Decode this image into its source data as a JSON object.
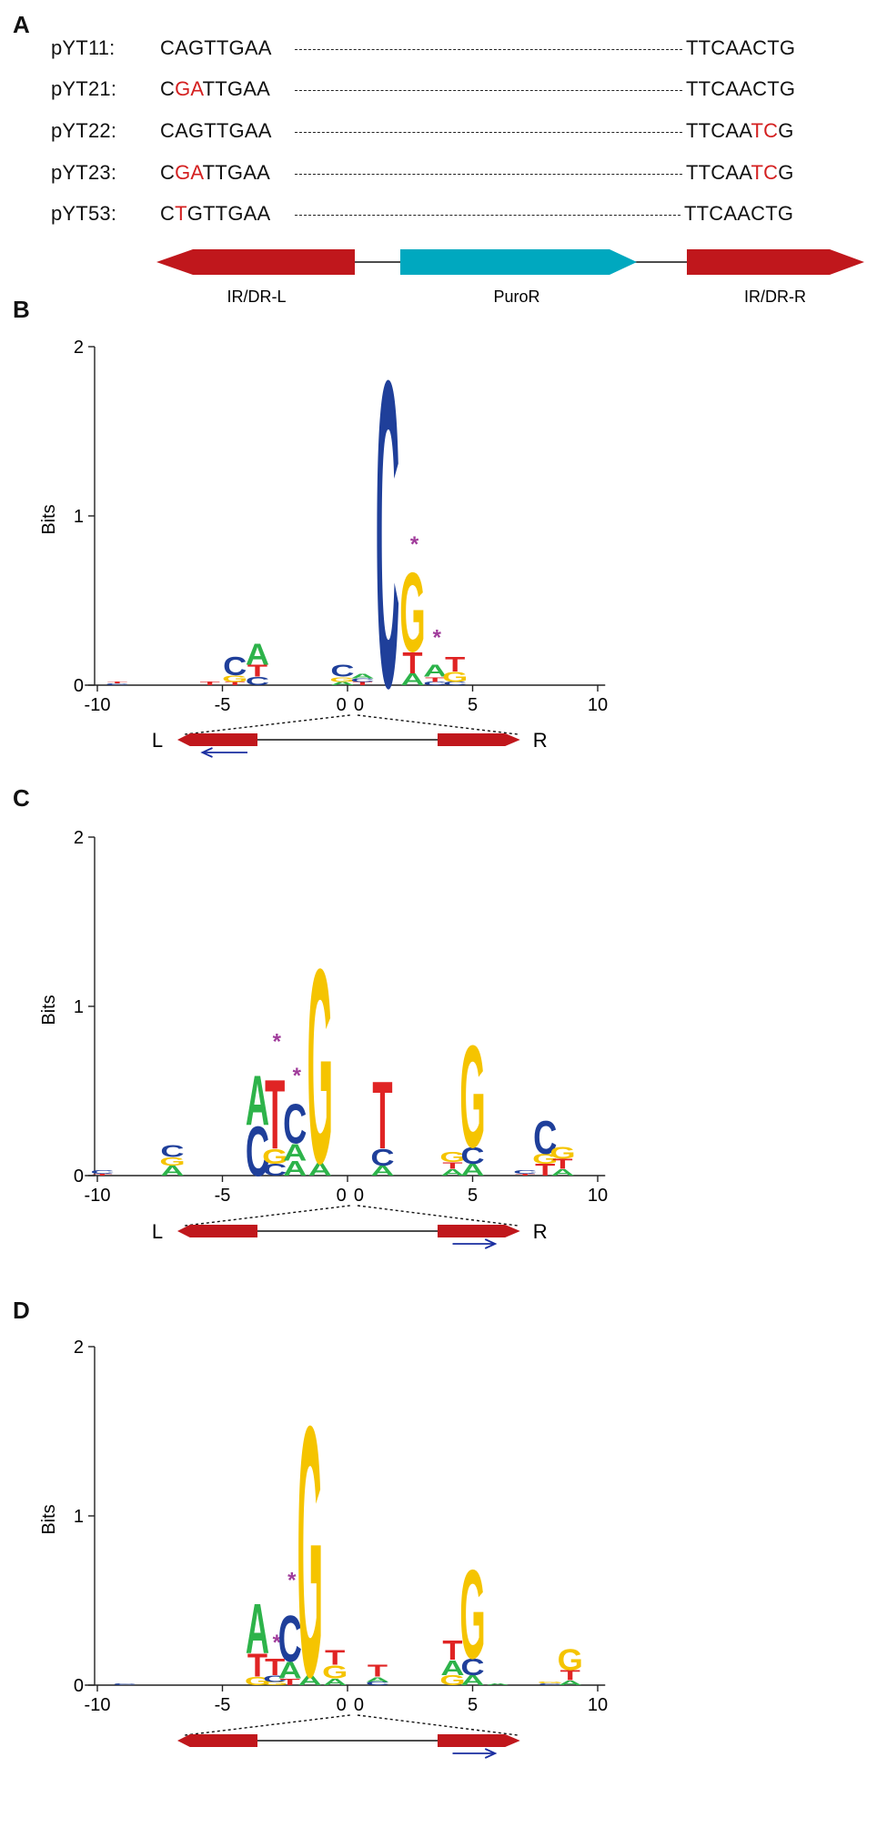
{
  "panels": {
    "A": "A",
    "B": "B",
    "C": "C",
    "D": "D"
  },
  "sequences": [
    {
      "name": "pYT11:",
      "left": [
        [
          "CAGTTGAA",
          false
        ]
      ],
      "right": [
        [
          "TTCAACTG",
          false
        ]
      ]
    },
    {
      "name": "pYT21:",
      "left": [
        [
          "C",
          false
        ],
        [
          "GA",
          true
        ],
        [
          "TTGAA",
          false
        ]
      ],
      "right": [
        [
          "TTCAACTG",
          false
        ]
      ]
    },
    {
      "name": "pYT22:",
      "left": [
        [
          "CAGTTGAA",
          false
        ]
      ],
      "right": [
        [
          "TTCAA",
          false
        ],
        [
          "TC",
          true
        ],
        [
          "G",
          false
        ]
      ]
    },
    {
      "name": "pYT23:",
      "left": [
        [
          "C",
          false
        ],
        [
          "GA",
          true
        ],
        [
          "TTGAA",
          false
        ]
      ],
      "right": [
        [
          "TTCAA",
          false
        ],
        [
          "TC",
          true
        ],
        [
          "G",
          false
        ]
      ]
    },
    {
      "name": "pYT53:",
      "left": [
        [
          "C",
          false
        ],
        [
          "T",
          true
        ],
        [
          "GTTGAA",
          false
        ]
      ],
      "right": [
        [
          "TTCAACTG",
          false
        ]
      ]
    }
  ],
  "construct": {
    "left_label": "IR/DR-L",
    "middle_label": "PuroR",
    "right_label": "IR/DR-R"
  },
  "colors": {
    "A": "#2db34a",
    "C": "#1f3f9a",
    "G": "#f5c400",
    "T": "#e02424",
    "arrow_red": "#c0171c",
    "puro": "#00a8bf",
    "star": "#a03c9b",
    "blue_arrow": "#1a2ea0"
  },
  "logo_axes": {
    "ylabel": "Bits",
    "yticks": [
      "0",
      "1",
      "2"
    ],
    "xticks": [
      "-10",
      "-5",
      "0",
      "0",
      "5",
      "10"
    ]
  },
  "chart_data": [
    {
      "type": "sequence-logo",
      "panel": "B",
      "ylabel": "Bits",
      "ylim": [
        0,
        2
      ],
      "xlim": [
        -10,
        10
      ],
      "positions": [
        {
          "x": -9.2,
          "stack": [
            [
              "C",
              0.01
            ],
            [
              "T",
              0.01
            ]
          ]
        },
        {
          "x": -5.5,
          "stack": [
            [
              "T",
              0.02
            ]
          ]
        },
        {
          "x": -4.5,
          "stack": [
            [
              "T",
              0.02
            ],
            [
              "G",
              0.04
            ],
            [
              "C",
              0.11
            ]
          ]
        },
        {
          "x": -3.6,
          "stack": [
            [
              "C",
              0.05
            ],
            [
              "T",
              0.07
            ],
            [
              "A",
              0.13
            ]
          ]
        },
        {
          "x": -0.2,
          "stack": [
            [
              "A",
              0.02
            ],
            [
              "G",
              0.03
            ],
            [
              "C",
              0.07
            ]
          ]
        },
        {
          "x": 0.6,
          "stack": [
            [
              "T",
              0.02
            ],
            [
              "C",
              0.02
            ],
            [
              "A",
              0.03
            ]
          ]
        },
        {
          "x": 1.6,
          "stack": [
            [
              "C",
              1.86
            ]
          ]
        },
        {
          "x": 2.6,
          "stack": [
            [
              "A",
              0.07
            ],
            [
              "T",
              0.13
            ],
            [
              "G",
              0.48
            ]
          ],
          "star": 0.8
        },
        {
          "x": 3.5,
          "stack": [
            [
              "C",
              0.02
            ],
            [
              "T",
              0.03
            ],
            [
              "A",
              0.07
            ]
          ],
          "star": 0.25
        },
        {
          "x": 4.3,
          "stack": [
            [
              "C",
              0.02
            ],
            [
              "G",
              0.06
            ],
            [
              "T",
              0.09
            ]
          ]
        }
      ],
      "diagram": {
        "left_label": "L",
        "right_label": "R",
        "arrow": "left-under-left"
      }
    },
    {
      "type": "sequence-logo",
      "panel": "C",
      "ylabel": "Bits",
      "ylim": [
        0,
        2
      ],
      "xlim": [
        -10,
        10
      ],
      "positions": [
        {
          "x": -9.8,
          "stack": [
            [
              "T",
              0.01
            ],
            [
              "C",
              0.02
            ]
          ]
        },
        {
          "x": -7.0,
          "stack": [
            [
              "A",
              0.06
            ],
            [
              "G",
              0.05
            ],
            [
              "C",
              0.07
            ]
          ]
        },
        {
          "x": -3.6,
          "stack": [
            [
              "C",
              0.3
            ],
            [
              "A",
              0.3
            ]
          ]
        },
        {
          "x": -2.9,
          "stack": [
            [
              "C",
              0.07
            ],
            [
              "G",
              0.09
            ],
            [
              "T",
              0.42
            ]
          ],
          "star": 0.76
        },
        {
          "x": -2.1,
          "stack": [
            [
              "A",
              0.09
            ],
            [
              "A",
              0.1
            ],
            [
              "C",
              0.24
            ]
          ],
          "star": 0.56
        },
        {
          "x": -1.1,
          "stack": [
            [
              "A",
              0.08
            ],
            [
              "G",
              1.18
            ]
          ]
        },
        {
          "x": 1.4,
          "stack": [
            [
              "A",
              0.06
            ],
            [
              "C",
              0.1
            ],
            [
              "T",
              0.41
            ]
          ]
        },
        {
          "x": 4.2,
          "stack": [
            [
              "A",
              0.04
            ],
            [
              "T",
              0.04
            ],
            [
              "G",
              0.06
            ]
          ]
        },
        {
          "x": 5.0,
          "stack": [
            [
              "A",
              0.07
            ],
            [
              "C",
              0.1
            ],
            [
              "G",
              0.62
            ]
          ]
        },
        {
          "x": 7.1,
          "stack": [
            [
              "T",
              0.01
            ],
            [
              "C",
              0.02
            ]
          ]
        },
        {
          "x": 7.9,
          "stack": [
            [
              "T",
              0.07
            ],
            [
              "G",
              0.06
            ],
            [
              "C",
              0.2
            ]
          ]
        },
        {
          "x": 8.6,
          "stack": [
            [
              "A",
              0.04
            ],
            [
              "T",
              0.06
            ],
            [
              "G",
              0.07
            ]
          ]
        }
      ],
      "diagram": {
        "left_label": "L",
        "right_label": "R",
        "arrow": "right-under-right"
      }
    },
    {
      "type": "sequence-logo",
      "panel": "D",
      "ylabel": "Bits",
      "ylim": [
        0,
        2
      ],
      "xlim": [
        -10,
        10
      ],
      "positions": [
        {
          "x": -8.9,
          "stack": [
            [
              "C",
              0.01
            ]
          ]
        },
        {
          "x": -3.6,
          "stack": [
            [
              "G",
              0.05
            ],
            [
              "T",
              0.14
            ],
            [
              "A",
              0.3
            ]
          ]
        },
        {
          "x": -2.9,
          "stack": [
            [
              "G",
              0.02
            ],
            [
              "C",
              0.04
            ],
            [
              "T",
              0.1
            ]
          ],
          "star": 0.22
        },
        {
          "x": -2.3,
          "stack": [
            [
              "T",
              0.04
            ],
            [
              "A",
              0.1
            ],
            [
              "C",
              0.28
            ]
          ],
          "star": 0.59
        },
        {
          "x": -1.5,
          "stack": [
            [
              "A",
              0.06
            ],
            [
              "G",
              1.52
            ]
          ]
        },
        {
          "x": -0.5,
          "stack": [
            [
              "A",
              0.04
            ],
            [
              "G",
              0.08
            ],
            [
              "T",
              0.09
            ]
          ]
        },
        {
          "x": 1.2,
          "stack": [
            [
              "C",
              0.02
            ],
            [
              "A",
              0.03
            ],
            [
              "T",
              0.07
            ]
          ]
        },
        {
          "x": 4.2,
          "stack": [
            [
              "G",
              0.06
            ],
            [
              "A",
              0.09
            ],
            [
              "T",
              0.12
            ]
          ]
        },
        {
          "x": 5.0,
          "stack": [
            [
              "A",
              0.06
            ],
            [
              "C",
              0.1
            ],
            [
              "G",
              0.54
            ]
          ]
        },
        {
          "x": 6.0,
          "stack": [
            [
              "A",
              0.01
            ]
          ]
        },
        {
          "x": 8.1,
          "stack": [
            [
              "C",
              0.01
            ],
            [
              "G",
              0.01
            ]
          ]
        },
        {
          "x": 8.9,
          "stack": [
            [
              "A",
              0.03
            ],
            [
              "T",
              0.06
            ],
            [
              "G",
              0.13
            ]
          ]
        }
      ],
      "diagram": {
        "left_label": "",
        "right_label": "",
        "arrow": "right-under-right"
      }
    }
  ]
}
